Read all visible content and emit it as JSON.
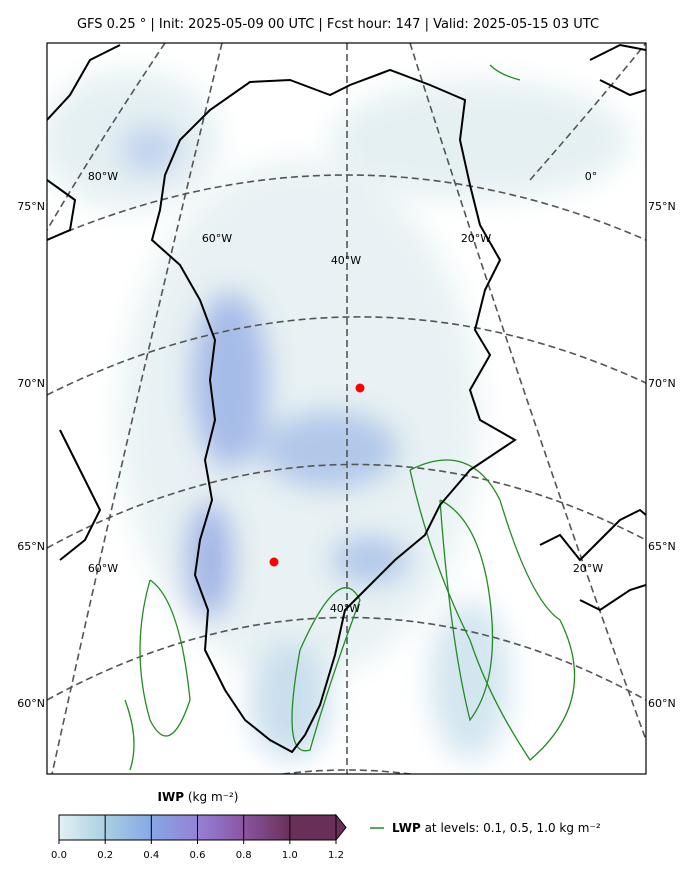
{
  "header": {
    "title": "GFS 0.25 °  |  Init: 2025-05-09 00 UTC  |  Fcst hour: 147  |  Valid: 2025-05-15 03 UTC"
  },
  "map": {
    "lat_labels_left": [
      "75°N",
      "70°N",
      "65°N",
      "60°N"
    ],
    "lat_labels_right": [
      "75°N",
      "70°N",
      "65°N",
      "60°N"
    ],
    "lon_labels": [
      "80°W",
      "0°",
      "60°W",
      "20°W",
      "40°W",
      "60°W",
      "20°W",
      "40°W"
    ],
    "marker_color": "#ff0000",
    "contour_color": "#228b22"
  },
  "colorbar": {
    "title": "IWP",
    "units": "(kg m⁻²)",
    "colors": [
      "#e3f0f3",
      "#a8d0e2",
      "#86a8e6",
      "#9581d6",
      "#8a55a2",
      "#6a2f58"
    ],
    "range": [
      0,
      1.2
    ],
    "ticks": [
      {
        "value": 0,
        "label": "0.0"
      },
      {
        "value": 0.2,
        "label": "0.2"
      },
      {
        "value": 0.4,
        "label": "0.4"
      },
      {
        "value": 0.6,
        "label": "0.6"
      },
      {
        "value": 0.8,
        "label": "0.8"
      },
      {
        "value": 1,
        "label": "1.0"
      },
      {
        "value": 1.2,
        "label": "1.2"
      }
    ]
  },
  "legend": {
    "name": "LWP",
    "text": "at levels: 0.1, 0.5, 1.0  kg m⁻²"
  }
}
